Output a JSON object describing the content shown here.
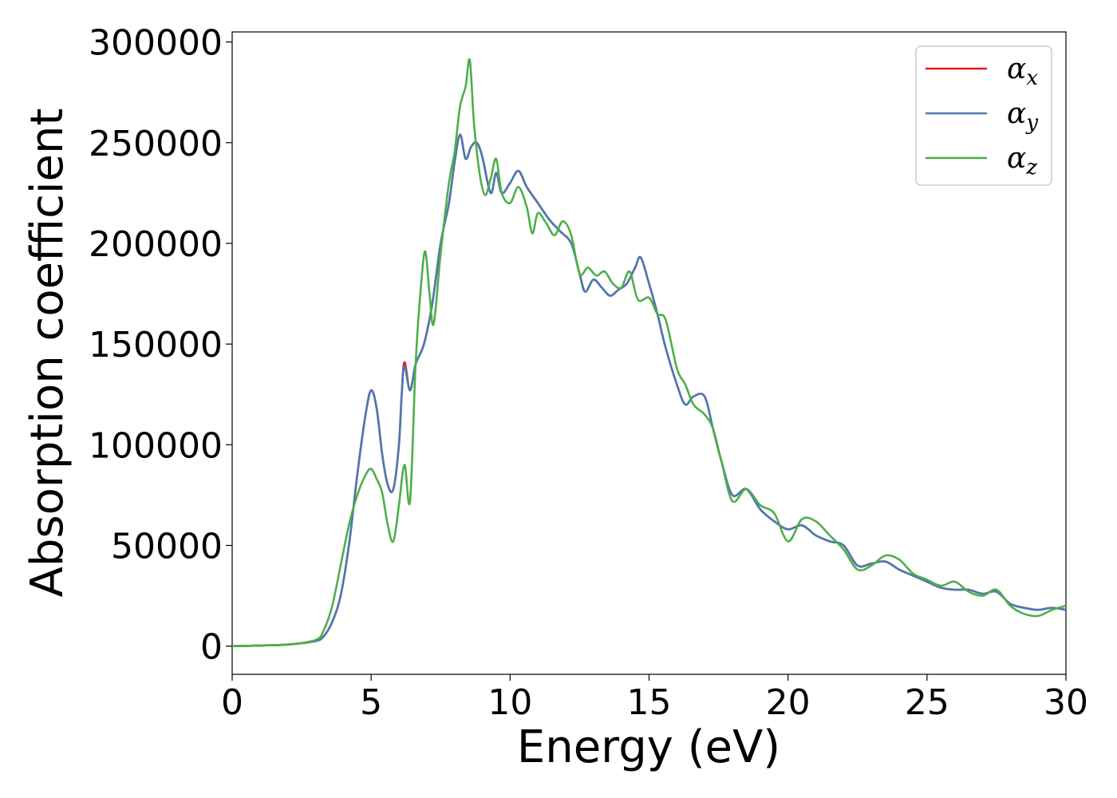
{
  "chart_data": {
    "type": "line",
    "title": "",
    "xlabel": "Energy (eV)",
    "ylabel": "Absorption coefficient",
    "xlim": [
      0,
      30
    ],
    "ylim": [
      -14000,
      305000
    ],
    "xticks": [
      0,
      5,
      10,
      15,
      20,
      25,
      30
    ],
    "yticks": [
      0,
      50000,
      100000,
      150000,
      200000,
      250000,
      300000
    ],
    "xtick_labels": [
      "0",
      "5",
      "10",
      "15",
      "20",
      "25",
      "30"
    ],
    "ytick_labels": [
      "0",
      "50000",
      "100000",
      "150000",
      "200000",
      "250000",
      "300000"
    ],
    "grid": false,
    "legend_position": "top-right",
    "series": [
      {
        "name": "αx",
        "symbol": "α",
        "subscript": "x",
        "color": "#e41a1c",
        "x": [
          0,
          1,
          2,
          3,
          3.3,
          3.6,
          3.9,
          4.2,
          4.5,
          4.8,
          5.0,
          5.2,
          5.4,
          5.6,
          5.8,
          6.0,
          6.1,
          6.2,
          6.4,
          6.6,
          6.9,
          7.2,
          7.5,
          7.8,
          8.0,
          8.2,
          8.4,
          8.6,
          8.8,
          9.0,
          9.3,
          9.5,
          9.7,
          10.0,
          10.3,
          10.6,
          11.0,
          11.4,
          11.8,
          12.2,
          12.5,
          12.7,
          13.0,
          13.3,
          13.6,
          13.9,
          14.2,
          14.5,
          14.7,
          15.0,
          15.3,
          15.6,
          16.0,
          16.3,
          16.6,
          17.0,
          17.3,
          17.6,
          18.0,
          18.5,
          19.0,
          19.5,
          20.0,
          20.5,
          21.0,
          21.5,
          22.0,
          22.5,
          23.0,
          23.5,
          24.0,
          24.5,
          25.0,
          25.5,
          26.0,
          26.5,
          27.0,
          27.5,
          28.0,
          28.5,
          29.0,
          29.5,
          30.0
        ],
        "y": [
          0,
          300,
          800,
          2500,
          5000,
          12000,
          25000,
          50000,
          85000,
          115000,
          127000,
          118000,
          95000,
          80000,
          78000,
          100000,
          125000,
          141000,
          127000,
          140000,
          150000,
          170000,
          200000,
          220000,
          240000,
          254000,
          242000,
          248000,
          250000,
          243000,
          225000,
          235000,
          225000,
          230000,
          236000,
          228000,
          220000,
          212000,
          206000,
          200000,
          185000,
          176000,
          182000,
          178000,
          174000,
          177000,
          180000,
          188000,
          193000,
          180000,
          165000,
          148000,
          130000,
          120000,
          124000,
          124000,
          108000,
          92000,
          75000,
          78000,
          68000,
          62000,
          58000,
          60000,
          55000,
          52000,
          50000,
          40000,
          41000,
          42000,
          38000,
          35000,
          32000,
          29000,
          28000,
          28000,
          26000,
          27000,
          21000,
          19000,
          18000,
          19000,
          18000
        ]
      },
      {
        "name": "αy",
        "symbol": "α",
        "subscript": "y",
        "color": "#4a7ab3",
        "x": [
          0,
          1,
          2,
          3,
          3.3,
          3.6,
          3.9,
          4.2,
          4.5,
          4.8,
          5.0,
          5.2,
          5.4,
          5.6,
          5.8,
          6.0,
          6.1,
          6.2,
          6.4,
          6.6,
          6.9,
          7.2,
          7.5,
          7.8,
          8.0,
          8.2,
          8.4,
          8.6,
          8.8,
          9.0,
          9.3,
          9.5,
          9.7,
          10.0,
          10.3,
          10.6,
          11.0,
          11.4,
          11.8,
          12.2,
          12.5,
          12.7,
          13.0,
          13.3,
          13.6,
          13.9,
          14.2,
          14.5,
          14.7,
          15.0,
          15.3,
          15.6,
          16.0,
          16.3,
          16.6,
          17.0,
          17.3,
          17.6,
          18.0,
          18.5,
          19.0,
          19.5,
          20.0,
          20.5,
          21.0,
          21.5,
          22.0,
          22.5,
          23.0,
          23.5,
          24.0,
          24.5,
          25.0,
          25.5,
          26.0,
          26.5,
          27.0,
          27.5,
          28.0,
          28.5,
          29.0,
          29.5,
          30.0
        ],
        "y": [
          0,
          300,
          800,
          2500,
          5000,
          12000,
          25000,
          50000,
          85000,
          115000,
          127000,
          118000,
          95000,
          80000,
          78000,
          100000,
          125000,
          139000,
          127000,
          140000,
          150000,
          170000,
          200000,
          220000,
          240000,
          254000,
          242000,
          248000,
          250000,
          243000,
          225000,
          235000,
          225000,
          230000,
          236000,
          228000,
          220000,
          212000,
          206000,
          200000,
          185000,
          176000,
          182000,
          178000,
          174000,
          177000,
          180000,
          188000,
          193000,
          180000,
          165000,
          148000,
          130000,
          120000,
          124000,
          124000,
          108000,
          92000,
          75000,
          78000,
          68000,
          62000,
          58000,
          60000,
          55000,
          52000,
          50000,
          40000,
          41000,
          42000,
          38000,
          35000,
          32000,
          29000,
          28000,
          28000,
          26000,
          27000,
          21000,
          19000,
          18000,
          19000,
          18000
        ]
      },
      {
        "name": "αz",
        "symbol": "α",
        "subscript": "z",
        "color": "#4daf4a",
        "x": [
          0,
          1,
          2,
          3,
          3.3,
          3.6,
          3.9,
          4.2,
          4.5,
          4.8,
          5.0,
          5.2,
          5.4,
          5.6,
          5.8,
          6.0,
          6.2,
          6.4,
          6.6,
          6.8,
          6.95,
          7.1,
          7.25,
          7.5,
          7.8,
          8.0,
          8.2,
          8.4,
          8.55,
          8.7,
          8.9,
          9.1,
          9.3,
          9.5,
          9.7,
          10.0,
          10.3,
          10.6,
          10.8,
          11.0,
          11.3,
          11.6,
          11.9,
          12.2,
          12.5,
          12.8,
          13.1,
          13.4,
          13.7,
          14.0,
          14.3,
          14.6,
          15.0,
          15.3,
          15.6,
          16.0,
          16.3,
          16.6,
          17.0,
          17.3,
          17.6,
          18.0,
          18.5,
          19.0,
          19.5,
          20.0,
          20.5,
          21.0,
          21.5,
          22.0,
          22.5,
          23.0,
          23.5,
          24.0,
          24.5,
          25.0,
          25.5,
          26.0,
          26.5,
          27.0,
          27.5,
          28.0,
          28.5,
          29.0,
          29.5,
          30.0
        ],
        "y": [
          0,
          300,
          800,
          3000,
          8000,
          20000,
          40000,
          60000,
          75000,
          85000,
          88000,
          83000,
          76000,
          60000,
          52000,
          70000,
          90000,
          72000,
          140000,
          180000,
          196000,
          175000,
          160000,
          195000,
          230000,
          245000,
          268000,
          278000,
          291000,
          260000,
          235000,
          224000,
          232000,
          242000,
          225000,
          220000,
          228000,
          218000,
          205000,
          215000,
          210000,
          204000,
          211000,
          204000,
          185000,
          188000,
          184000,
          186000,
          180000,
          178000,
          186000,
          172000,
          173000,
          165000,
          162000,
          138000,
          130000,
          120000,
          115000,
          108000,
          92000,
          72000,
          78000,
          70000,
          66000,
          52000,
          63000,
          62000,
          55000,
          48000,
          38000,
          40000,
          45000,
          43000,
          36000,
          33000,
          30000,
          32000,
          27000,
          25000,
          28000,
          20000,
          16000,
          15000,
          18000,
          20000
        ]
      }
    ]
  }
}
